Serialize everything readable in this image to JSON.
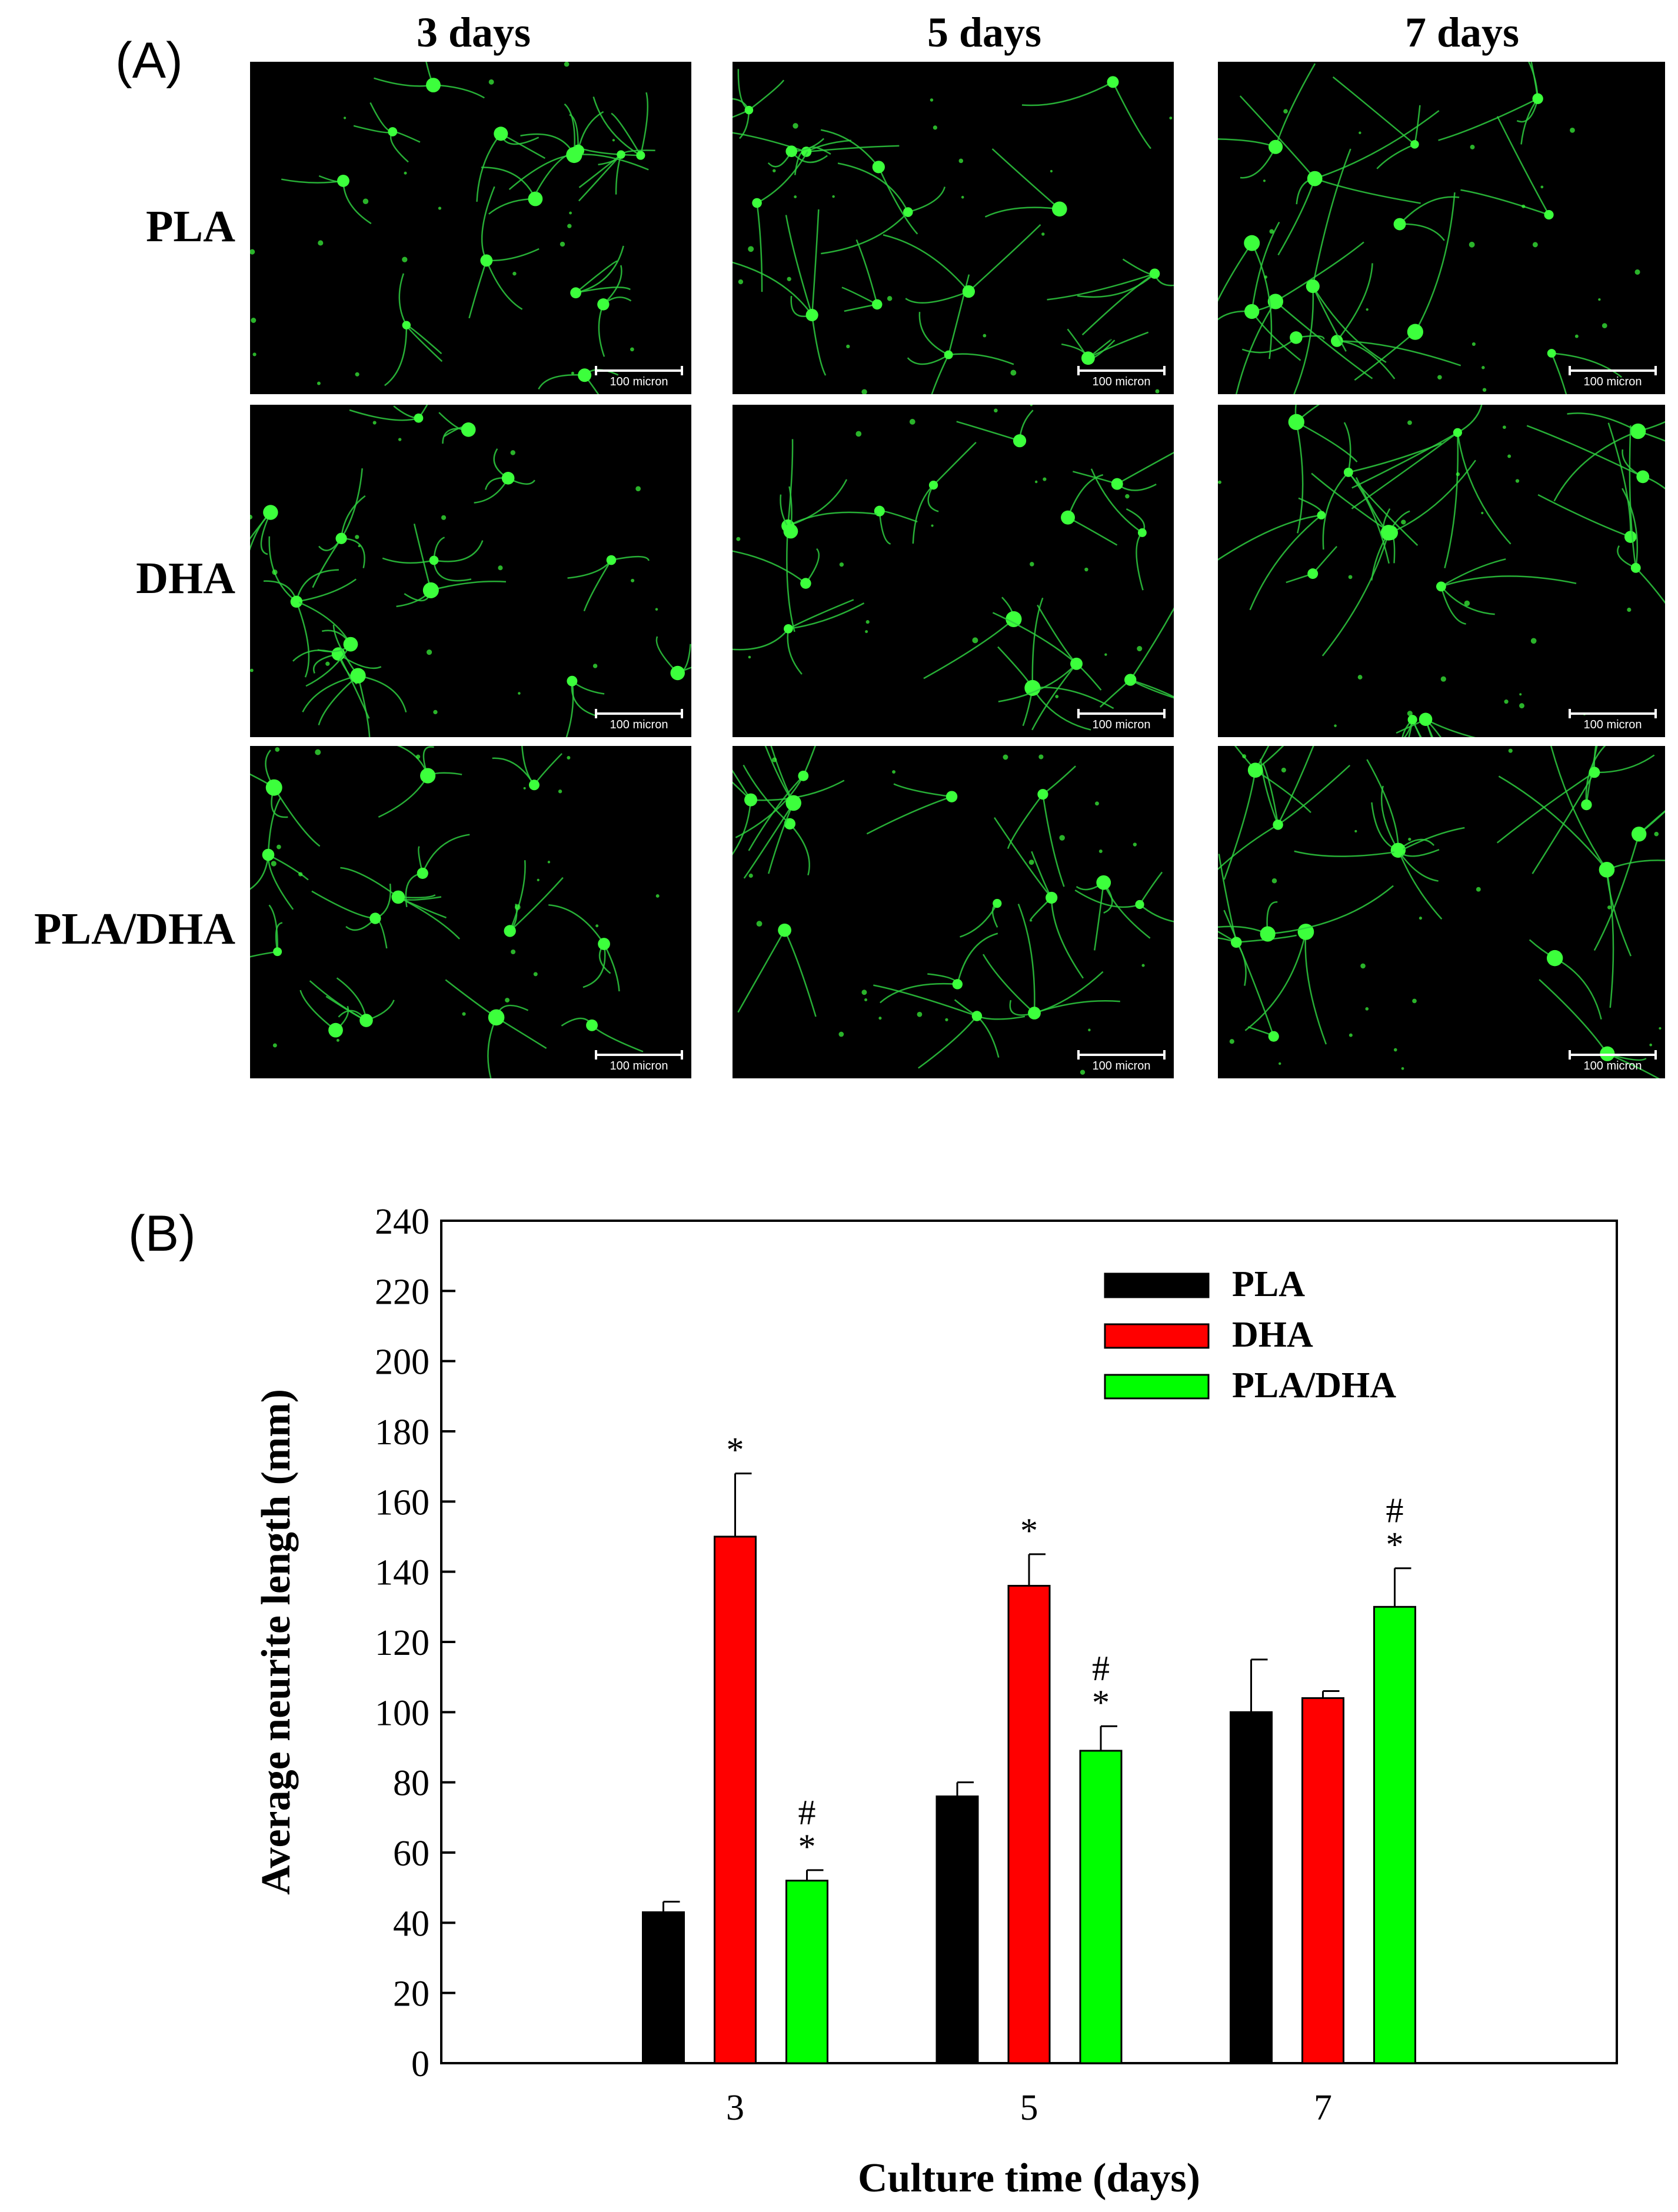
{
  "panel_a": {
    "label": "(A)",
    "columns": [
      "3 days",
      "5 days",
      "7 days"
    ],
    "rows": [
      "PLA",
      "DHA",
      "PLA/DHA"
    ],
    "scale_bar_text": "100 micron",
    "colors": {
      "background": "#000000",
      "cell": "#3cff3c",
      "neurite": "#2ecc40"
    }
  },
  "panel_b": {
    "label": "(B)"
  },
  "chart_data": {
    "type": "bar",
    "xlabel": "Culture time (days)",
    "ylabel": "Average neurite length (mm)",
    "categories": [
      "3",
      "5",
      "7"
    ],
    "ylim": [
      0,
      240
    ],
    "yticks": [
      0,
      20,
      40,
      60,
      80,
      100,
      120,
      140,
      160,
      180,
      200,
      220,
      240
    ],
    "legend_position": "top-right",
    "grid": false,
    "series": [
      {
        "name": "PLA",
        "color": "#000000",
        "values": [
          43,
          76,
          100
        ],
        "errors": [
          3,
          4,
          15
        ],
        "markers": [
          "",
          "",
          ""
        ]
      },
      {
        "name": "DHA",
        "color": "#ff0000",
        "values": [
          150,
          136,
          104
        ],
        "errors": [
          18,
          9,
          2
        ],
        "markers": [
          "*",
          "*",
          ""
        ]
      },
      {
        "name": "PLA/DHA",
        "color": "#00ff00",
        "values": [
          52,
          89,
          130
        ],
        "errors": [
          3,
          7,
          11
        ],
        "markers": [
          "#\n*",
          "#\n*",
          "#\n*"
        ]
      }
    ]
  }
}
